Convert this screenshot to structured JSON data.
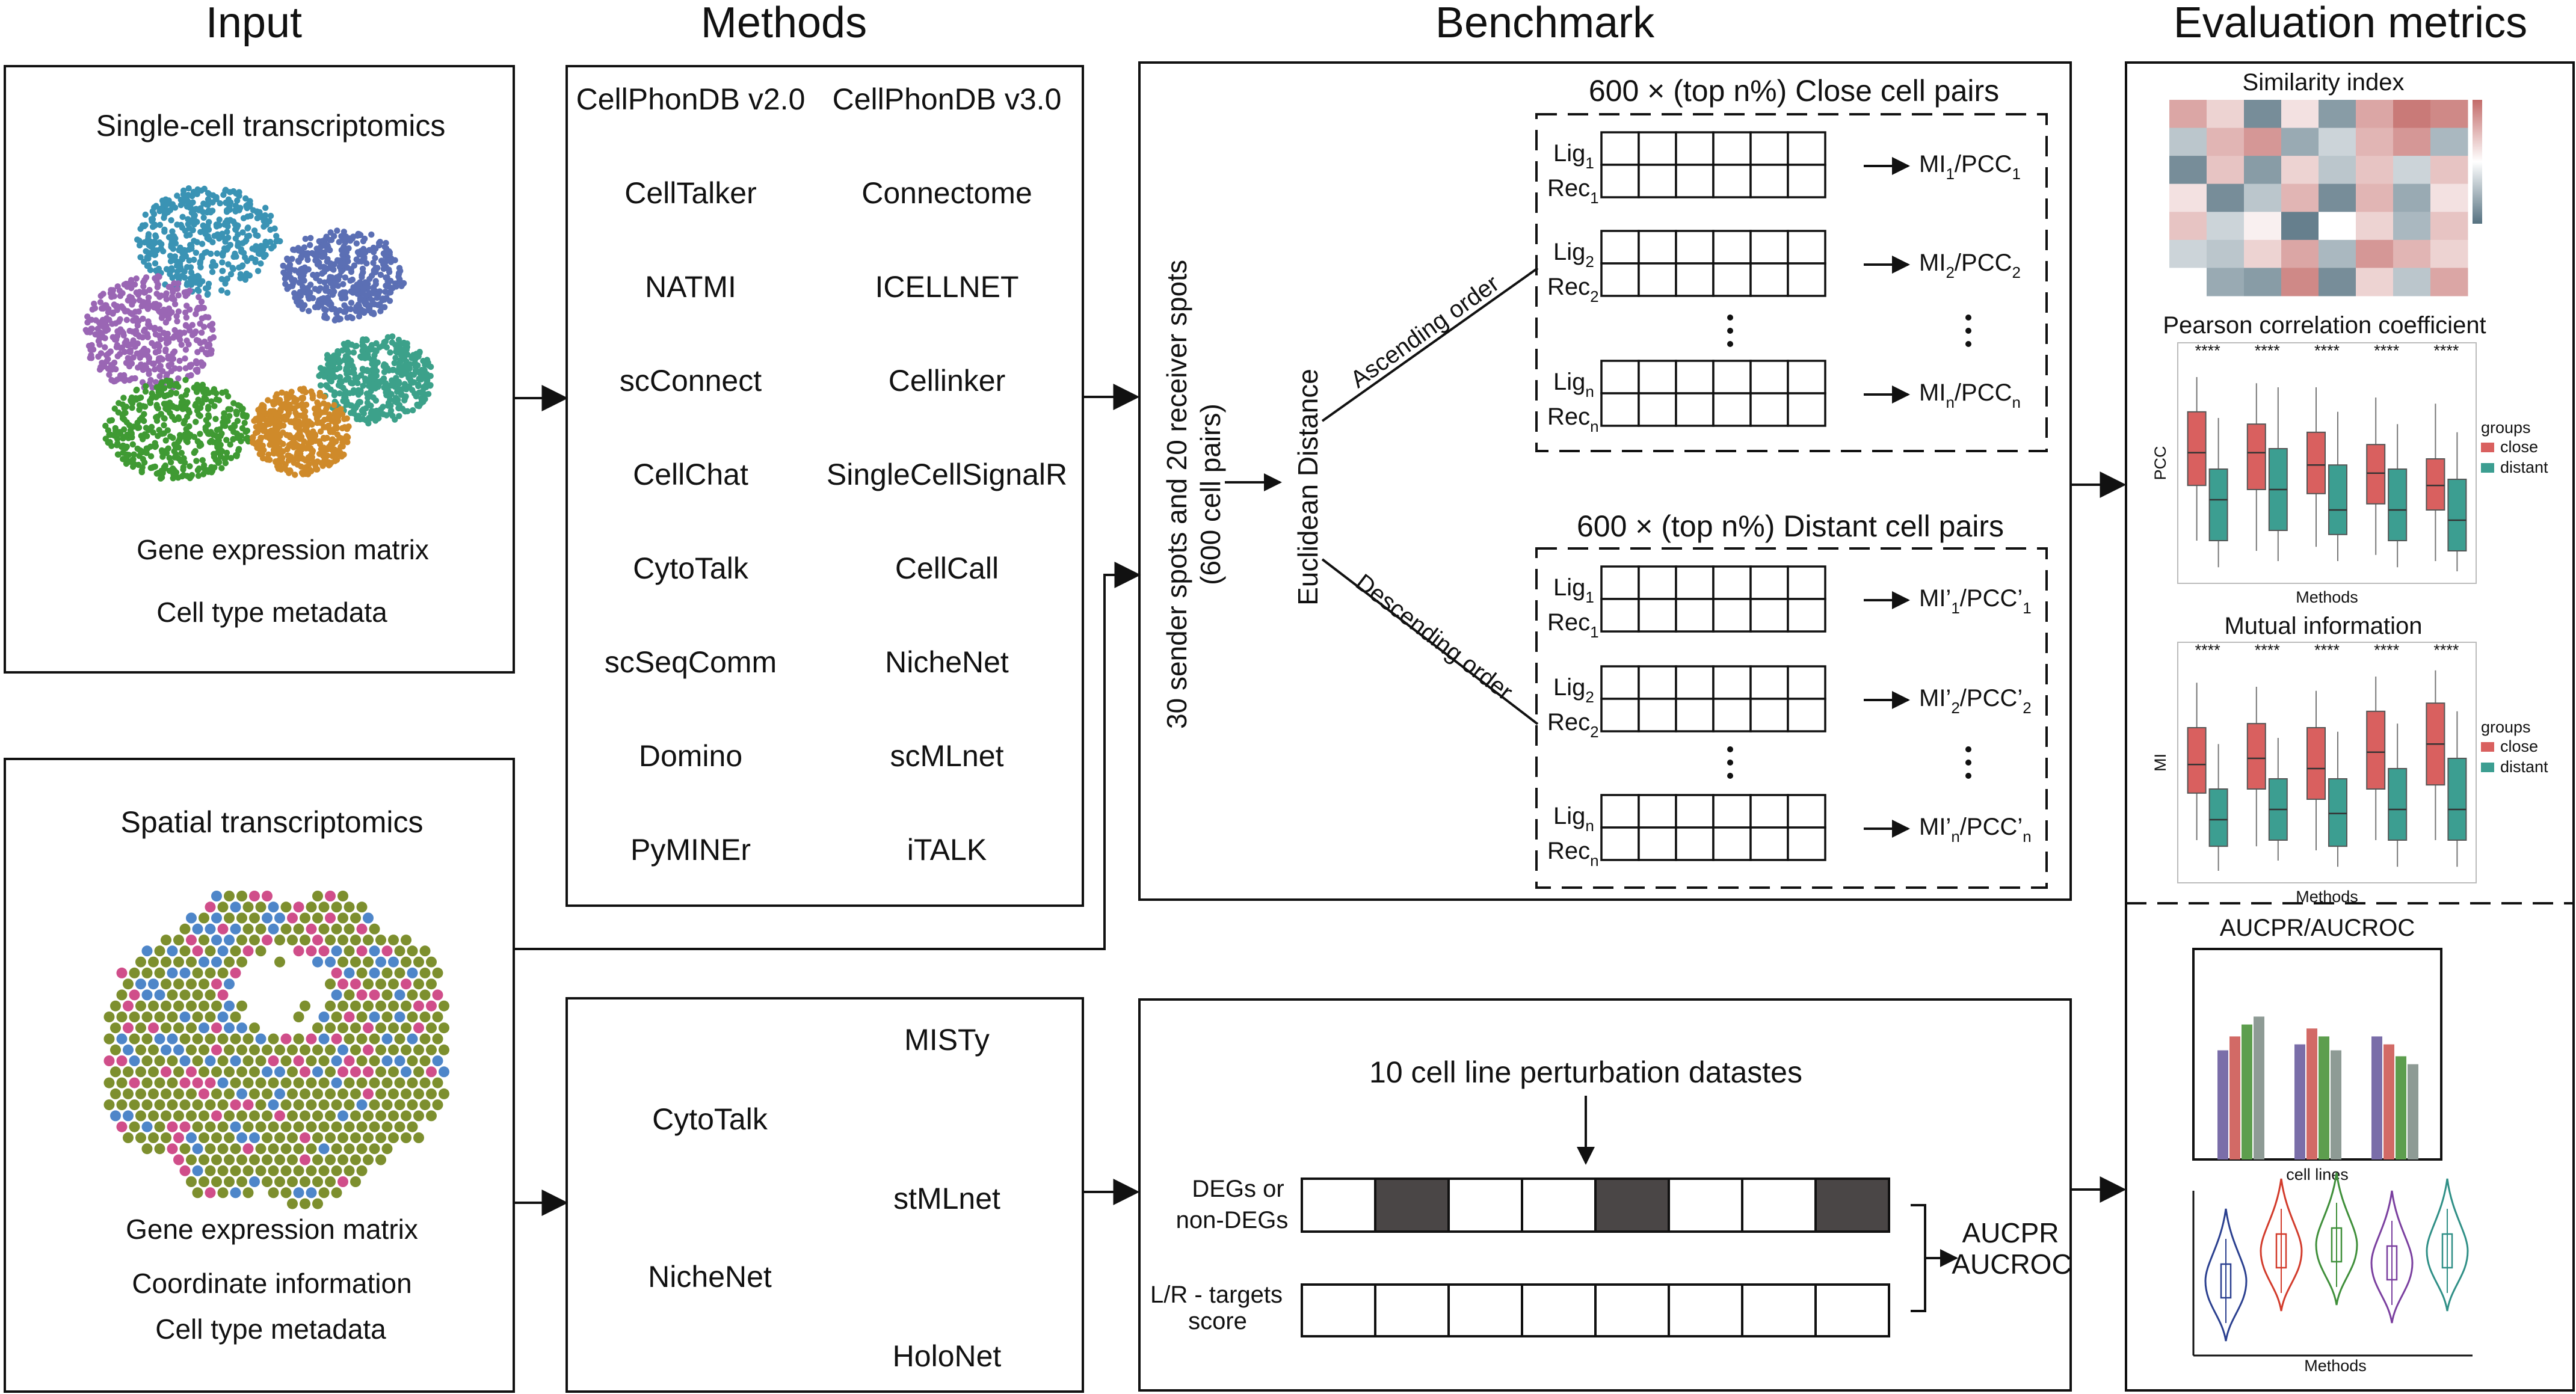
{
  "headers": {
    "input": "Input",
    "methods": "Methods",
    "benchmark": "Benchmark",
    "evaluation": "Evaluation metrics"
  },
  "input": {
    "sc_title": "Single-cell transcriptomics",
    "sc_lines": [
      "Gene expression matrix",
      "Cell type metadata"
    ],
    "st_title": "Spatial transcriptomics",
    "st_lines": [
      "Gene expression matrix",
      "Coordinate information",
      "Cell type metadata"
    ]
  },
  "methods": {
    "col1": [
      "CellPhonDB v2.0",
      "CellTalker",
      "NATMI",
      "scConnect",
      "CellChat",
      "CytoTalk",
      "scSeqComm",
      "Domino",
      "PyMINEr"
    ],
    "col2": [
      "CellPhonDB v3.0",
      "Connectome",
      "ICELLNET",
      "Cellinker",
      "SingleCellSignalR",
      "CellCall",
      "NicheNet",
      "scMLnet",
      "iTALK"
    ],
    "spatial_left": [
      "CytoTalk",
      "NicheNet"
    ],
    "spatial_right": [
      "MISTy",
      "stMLnet",
      "HoloNet"
    ]
  },
  "benchmark": {
    "spots_line1": "30 sender spots and 20 receiver spots",
    "spots_line2": "(600 cell pairs)",
    "distance": "Euclidean Distance",
    "ascending": "Ascending order",
    "descending": "Descending order",
    "close_title": "600 × (top n%) Close cell pairs",
    "distant_title": "600 × (top n%) Distant cell pairs",
    "lig": "Lig",
    "rec": "Rec",
    "sub_1": "1",
    "sub_2": "2",
    "sub_n": "n",
    "mi": "MI",
    "pcc": "/PCC",
    "mi_p": "MI’",
    "pcc_p": "/PCC’",
    "perturb_title": "10 cell line perturbation datastes",
    "degs_line1": "DEGs or",
    "degs_line2": "non-DEGs",
    "lr_line1": "L/R - targets",
    "lr_line2": "score",
    "aucpr": "AUCPR",
    "aucroc": "AUCROC"
  },
  "evaluation": {
    "similarity_title": "Similarity index",
    "pcc_title": "Pearson correlation coefficient",
    "pcc_ylabel": "PCC",
    "mi_title": "Mutual information",
    "mi_ylabel": "MI",
    "xlabel": "Methods",
    "legend_title": "groups",
    "legend_close": "close",
    "legend_distant": "distant",
    "sig": "****",
    "auc_title": "AUCPR/AUCROC",
    "auc_xlabel": "cell lines",
    "violin_xlabel": "Methods"
  },
  "colors": {
    "close": "#d9605f",
    "distant": "#3c9e91",
    "heat_low": "#557180",
    "heat_high": "#c36b69",
    "cell_blue": "#3a93b4",
    "cell_purple": "#5b6fb4",
    "cell_violet": "#9a66b4",
    "cell_teal": "#3ca18a",
    "cell_green": "#3f9a33",
    "cell_orange": "#cf8a2a",
    "spot_green": "#7d8f2e",
    "spot_pink": "#d04e8a",
    "spot_blue": "#4e86c9",
    "bar_purple": "#7a6ea9",
    "bar_red": "#d26a66",
    "bar_green": "#5d9e4e",
    "bar_grey": "#8e9b95",
    "violin_blue": "#2a3f8f",
    "violin_red": "#d23b2b",
    "violin_green": "#3f8f3a",
    "violin_purple": "#7a3f9f",
    "violin_teal": "#2f8f86"
  },
  "chart_data": [
    {
      "type": "heatmap",
      "title": "Similarity index",
      "colorscale": [
        "#557180",
        "#ffffff",
        "#c36b69"
      ],
      "values": [
        [
          0.6,
          0.3,
          -0.8,
          0.2,
          -0.7,
          0.6,
          0.9,
          0.8
        ],
        [
          -0.4,
          0.5,
          0.7,
          -0.6,
          -0.3,
          0.5,
          0.7,
          -0.5
        ],
        [
          -0.8,
          0.4,
          -0.7,
          0.3,
          -0.4,
          0.4,
          -0.3,
          0.4
        ],
        [
          0.2,
          -0.8,
          -0.4,
          0.5,
          -0.8,
          0.5,
          -0.6,
          0.2
        ],
        [
          0.4,
          -0.3,
          0.1,
          -0.9,
          0.0,
          0.3,
          -0.5,
          0.4
        ],
        [
          -0.3,
          -0.4,
          0.3,
          0.6,
          -0.5,
          0.7,
          0.5,
          0.3
        ],
        [
          0.0,
          -0.6,
          -0.7,
          0.8,
          -0.8,
          0.3,
          -0.4,
          0.6
        ]
      ]
    },
    {
      "type": "boxplot",
      "title": "Pearson correlation coefficient",
      "ylabel": "PCC",
      "xlabel": "Methods",
      "legend": [
        "close",
        "distant"
      ],
      "groups": 5,
      "series": [
        {
          "name": "close",
          "boxes": [
            [
              0.15,
              0.42,
              0.58,
              0.78,
              0.95
            ],
            [
              0.1,
              0.4,
              0.58,
              0.72,
              0.92
            ],
            [
              0.12,
              0.38,
              0.52,
              0.68,
              0.9
            ],
            [
              0.08,
              0.33,
              0.48,
              0.62,
              0.85
            ],
            [
              0.05,
              0.3,
              0.42,
              0.55,
              0.82
            ]
          ]
        },
        {
          "name": "distant",
          "boxes": [
            [
              0.02,
              0.15,
              0.35,
              0.5,
              0.75
            ],
            [
              0.05,
              0.2,
              0.4,
              0.6,
              0.9
            ],
            [
              0.05,
              0.18,
              0.3,
              0.52,
              0.78
            ],
            [
              0.02,
              0.15,
              0.3,
              0.5,
              0.72
            ],
            [
              0.0,
              0.1,
              0.25,
              0.45,
              0.68
            ]
          ]
        }
      ]
    },
    {
      "type": "boxplot",
      "title": "Mutual information",
      "ylabel": "MI",
      "xlabel": "Methods",
      "legend": [
        "close",
        "distant"
      ],
      "groups": 5,
      "series": [
        {
          "name": "close",
          "boxes": [
            [
              0.15,
              0.38,
              0.52,
              0.7,
              0.92
            ],
            [
              0.12,
              0.4,
              0.55,
              0.72,
              0.9
            ],
            [
              0.1,
              0.35,
              0.5,
              0.7,
              0.88
            ],
            [
              0.15,
              0.4,
              0.58,
              0.78,
              0.95
            ],
            [
              0.15,
              0.42,
              0.62,
              0.82,
              0.98
            ]
          ]
        },
        {
          "name": "distant",
          "boxes": [
            [
              0.0,
              0.12,
              0.25,
              0.4,
              0.62
            ],
            [
              0.05,
              0.15,
              0.3,
              0.45,
              0.65
            ],
            [
              0.02,
              0.12,
              0.28,
              0.45,
              0.68
            ],
            [
              0.02,
              0.15,
              0.3,
              0.5,
              0.72
            ],
            [
              0.02,
              0.15,
              0.3,
              0.55,
              0.78
            ]
          ]
        }
      ]
    },
    {
      "type": "bar",
      "title": "AUCPR/AUCROC",
      "xlabel": "cell lines",
      "groups": [
        {
          "values": [
            0.55,
            0.62,
            0.68,
            0.72
          ]
        },
        {
          "values": [
            0.58,
            0.66,
            0.62,
            0.55
          ]
        },
        {
          "values": [
            0.62,
            0.58,
            0.52,
            0.48
          ]
        }
      ]
    },
    {
      "type": "violin",
      "xlabel": "Methods",
      "count": 5
    }
  ]
}
